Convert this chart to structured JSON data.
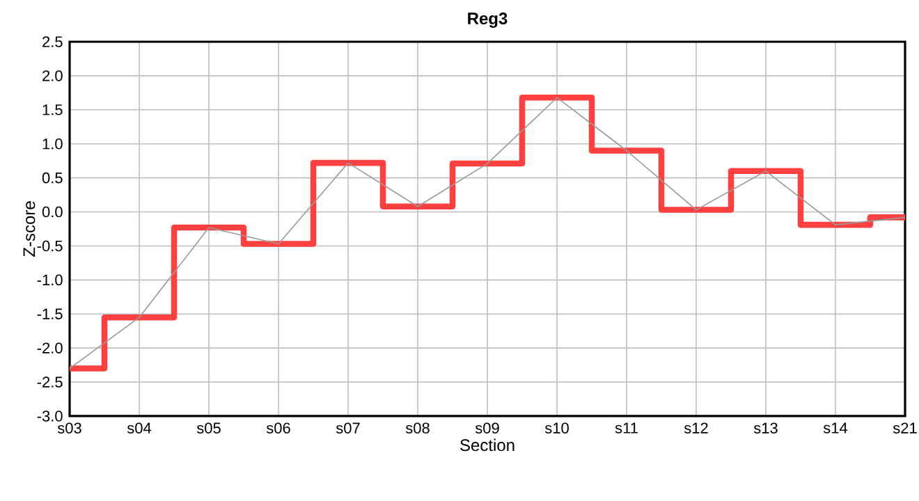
{
  "chart_data": {
    "type": "step",
    "title": "Reg3",
    "xlabel": "Section",
    "ylabel": "Z-score",
    "categories": [
      "s03",
      "s04",
      "s05",
      "s06",
      "s07",
      "s08",
      "s09",
      "s10",
      "s11",
      "s12",
      "s13",
      "s14",
      "s21"
    ],
    "series": [
      {
        "color": "#ff4040",
        "values": [
          -2.3,
          -1.55,
          -0.23,
          -0.47,
          0.72,
          0.08,
          0.71,
          1.68,
          0.9,
          0.03,
          0.6,
          -0.19,
          -0.08
        ]
      },
      {
        "type": "line",
        "color": "#999999",
        "values": [
          -2.3,
          -1.55,
          -0.23,
          -0.47,
          0.72,
          0.08,
          0.71,
          1.68,
          0.9,
          0.03,
          0.6,
          -0.19,
          -0.08
        ]
      }
    ],
    "ylim": [
      -3.0,
      2.5
    ],
    "yticks": [
      {
        "value": -3.0,
        "label": "-3.0"
      },
      {
        "value": -2.5,
        "label": "-2.5"
      },
      {
        "value": -2.0,
        "label": "-2.0"
      },
      {
        "value": -1.5,
        "label": "-1.5"
      },
      {
        "value": -1.0,
        "label": "-1.0"
      },
      {
        "value": -0.5,
        "label": "-0.5"
      },
      {
        "value": 0.0,
        "label": "0.0"
      },
      {
        "value": 0.5,
        "label": "0.5"
      },
      {
        "value": 1.0,
        "label": "1.0"
      },
      {
        "value": 1.5,
        "label": "1.5"
      },
      {
        "value": 2.0,
        "label": "2.0"
      },
      {
        "value": 2.5,
        "label": "2.5"
      }
    ],
    "grid": true
  }
}
